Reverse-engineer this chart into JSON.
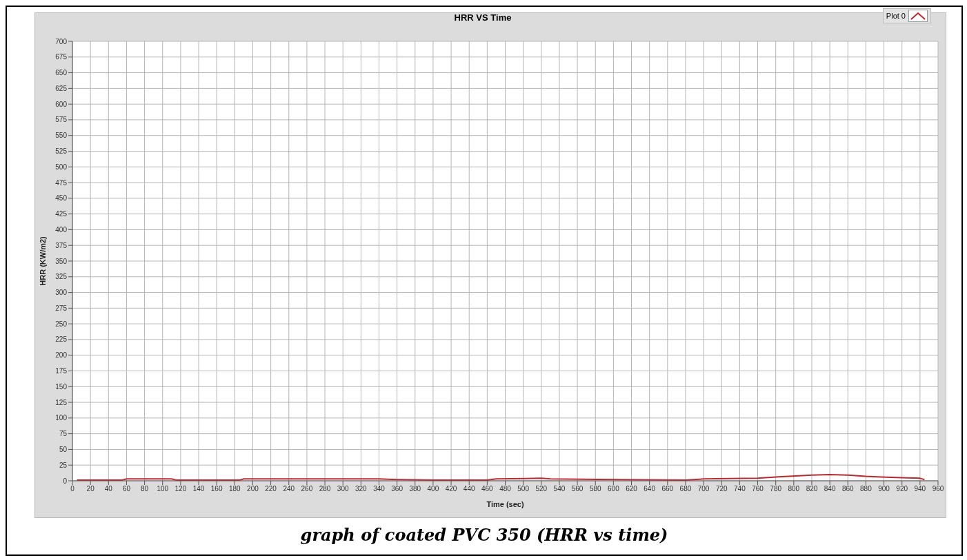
{
  "chart_data": {
    "type": "line",
    "title": "HRR VS Time",
    "xlabel": "Time (sec)",
    "ylabel": "HRR (KW/m2)",
    "annotations": [
      "graph of coated PVC 350 (HRR vs time)"
    ],
    "x": [
      5,
      55,
      60,
      110,
      115,
      185,
      190,
      340,
      360,
      400,
      460,
      470,
      520,
      530,
      600,
      680,
      700,
      760,
      780,
      820,
      840,
      860,
      880,
      920,
      940,
      945
    ],
    "series": [
      {
        "name": "Plot 0",
        "color": "#c0272d",
        "values": [
          1,
          1,
          3,
          3,
          1,
          1,
          3,
          3,
          2,
          1,
          1,
          3,
          4,
          3,
          2,
          1,
          3,
          4,
          6,
          9,
          10,
          9,
          7,
          5,
          4,
          2
        ]
      }
    ],
    "xlim": [
      0,
      960
    ],
    "xticks": [
      0,
      20,
      40,
      60,
      80,
      100,
      120,
      140,
      160,
      180,
      200,
      220,
      240,
      260,
      280,
      300,
      320,
      340,
      360,
      380,
      400,
      420,
      440,
      460,
      480,
      500,
      520,
      540,
      560,
      580,
      600,
      620,
      640,
      660,
      680,
      700,
      720,
      740,
      760,
      780,
      800,
      820,
      840,
      860,
      880,
      900,
      920,
      940,
      960
    ],
    "ylim": [
      0,
      700
    ],
    "yticks": [
      0,
      25,
      50,
      75,
      100,
      125,
      150,
      175,
      200,
      225,
      250,
      275,
      300,
      325,
      350,
      375,
      400,
      425,
      450,
      475,
      500,
      525,
      550,
      575,
      600,
      625,
      650,
      675,
      700
    ],
    "grid": true,
    "legend": "top right",
    "marker": "none",
    "line_style": "solid"
  }
}
